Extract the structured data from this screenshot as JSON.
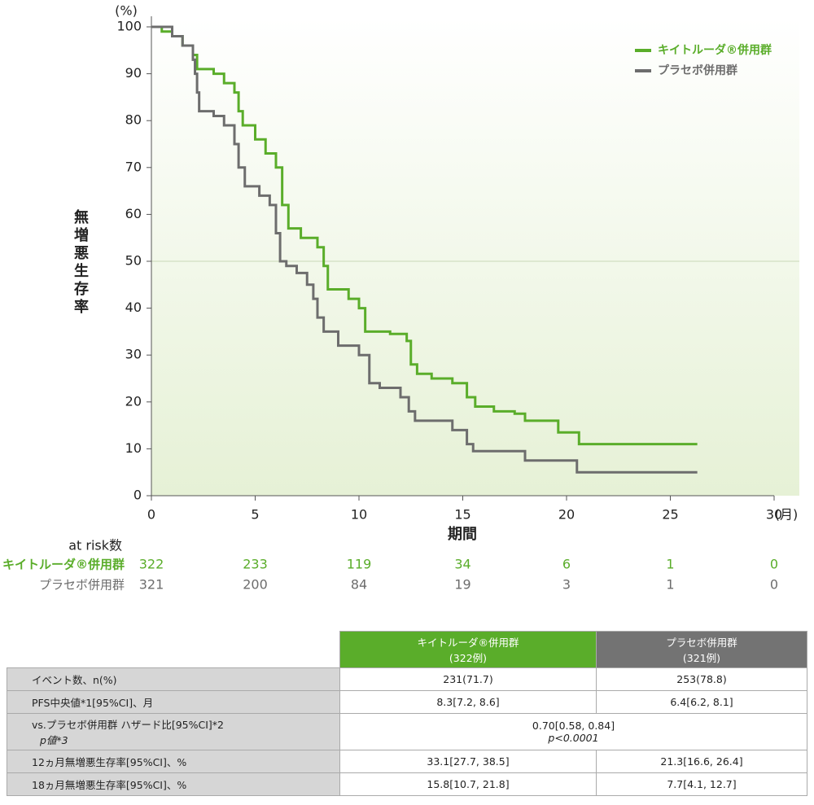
{
  "chart_data": {
    "type": "line",
    "step": true,
    "y_unit": "(%)",
    "x_unit": "(月)",
    "ylabel": "無増悪生存率",
    "xlabel": "期間",
    "xlim": [
      0,
      30
    ],
    "xticks": [
      0,
      5,
      10,
      15,
      20,
      25,
      30
    ],
    "ylim": [
      0,
      100
    ],
    "yticks": [
      0,
      10,
      20,
      30,
      40,
      50,
      60,
      70,
      80,
      90,
      100
    ],
    "reference_line": 50,
    "legend": "upper right",
    "series": [
      {
        "name": "キイトルーダ®併用群",
        "color": "#5aad2a",
        "x": [
          0,
          0.5,
          1,
          1.5,
          2,
          2.2,
          3,
          3.5,
          4,
          4.2,
          4.4,
          5,
          5.5,
          6,
          6.3,
          6.6,
          7.2,
          8,
          8.3,
          8.5,
          9.5,
          10,
          10.3,
          11.5,
          12.3,
          12.5,
          12.8,
          13.5,
          14.5,
          15.2,
          15.6,
          16.5,
          17.5,
          18,
          19.6,
          20.6,
          26.3
        ],
        "values": [
          100,
          99,
          98,
          96,
          94,
          91,
          90,
          88,
          86,
          82,
          79,
          76,
          73,
          70,
          62,
          57,
          55,
          53,
          49,
          44,
          42,
          40,
          35,
          34.5,
          33,
          28,
          26,
          25,
          24,
          21,
          19,
          18,
          17.5,
          16,
          13.5,
          11,
          11
        ]
      },
      {
        "name": "プラセボ併用群",
        "color": "#6d6d6d",
        "x": [
          0,
          1,
          1.5,
          2,
          2.1,
          2.2,
          2.3,
          3,
          3.5,
          4,
          4.2,
          4.5,
          5.2,
          5.7,
          6,
          6.2,
          6.5,
          7,
          7.5,
          7.8,
          8,
          8.3,
          9,
          10,
          10.5,
          11,
          12,
          12.4,
          12.7,
          14.5,
          15.2,
          15.5,
          18,
          20.5,
          26.3
        ],
        "values": [
          100,
          98,
          96,
          93,
          90,
          86,
          82,
          81,
          79,
          75,
          70,
          66,
          64,
          62,
          56,
          50,
          49,
          47.5,
          45,
          42,
          38,
          35,
          32,
          30,
          24,
          23,
          21,
          18,
          16,
          14,
          11,
          9.5,
          7.5,
          5,
          5
        ]
      }
    ]
  },
  "risk_table": {
    "title": "at risk数",
    "rows": [
      {
        "name": "キイトルーダ®併用群",
        "color": "#5aad2a",
        "values": [
          322,
          233,
          119,
          34,
          6,
          1,
          0
        ]
      },
      {
        "name": "プラセボ併用群",
        "color": "#6d6d6d",
        "values": [
          321,
          200,
          84,
          19,
          3,
          1,
          0
        ]
      }
    ]
  },
  "table": {
    "header": [
      [
        "キイトルーダ®併用群",
        "(322例)"
      ],
      [
        "プラセボ併用群",
        "(321例)"
      ]
    ],
    "rows": [
      [
        "イベント数、n(%)",
        "231(71.7)",
        "253(78.8)"
      ],
      [
        "PFS中央値*1[95%CI]、月",
        "8.3[7.2, 8.6]",
        "6.4[6.2, 8.1]"
      ],
      [
        [
          "vs.プラセボ併用群 ハザード比[95%CI]*2",
          "p値*3"
        ],
        [
          "0.70[0.58, 0.84]",
          "p<0.0001"
        ]
      ],
      [
        "12ヵ月無増悪生存率[95%CI]、%",
        "33.1[27.7, 38.5]",
        "21.3[16.6, 26.4]"
      ],
      [
        "18ヵ月無増悪生存率[95%CI]、%",
        "15.8[10.7, 21.8]",
        "7.7[4.1, 12.7]"
      ]
    ]
  }
}
